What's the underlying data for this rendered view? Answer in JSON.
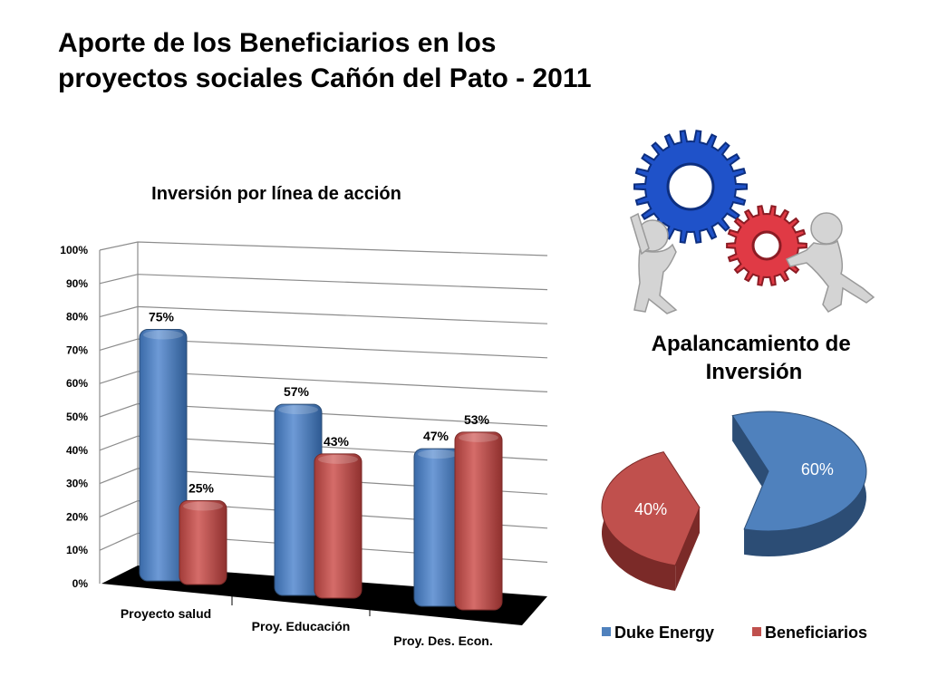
{
  "slide": {
    "title": "Aporte de los Beneficiarios en los\nproyectos sociales Cañón del Pato - 2011"
  },
  "colors": {
    "duke": "#4f81bd",
    "duke_dark": "#2c4d75",
    "benef": "#c0504d",
    "benef_dark": "#7b2a28"
  },
  "chart_data": [
    {
      "type": "bar",
      "title": "Inversión por línea de acción",
      "categories": [
        "Proyecto salud",
        "Proy. Educación",
        "Proy. Des. Econ."
      ],
      "series": [
        {
          "values": [
            75,
            57,
            47
          ],
          "labels": [
            "75%",
            "57%",
            "47%"
          ]
        },
        {
          "values": [
            25,
            43,
            53
          ],
          "labels": [
            "25%",
            "43%",
            "53%"
          ]
        }
      ],
      "y_ticks": [
        "0%",
        "10%",
        "20%",
        "30%",
        "40%",
        "50%",
        "60%",
        "70%",
        "80%",
        "90%",
        "100%"
      ],
      "ylim": [
        0,
        100
      ],
      "grid": true
    },
    {
      "type": "pie",
      "title": "Apalancamiento de Inversión",
      "slices": [
        {
          "name": "Duke Energy",
          "value": 60,
          "label": "60%"
        },
        {
          "name": "Beneficiarios",
          "value": 40,
          "label": "40%"
        }
      ],
      "legend": "bottom"
    }
  ]
}
